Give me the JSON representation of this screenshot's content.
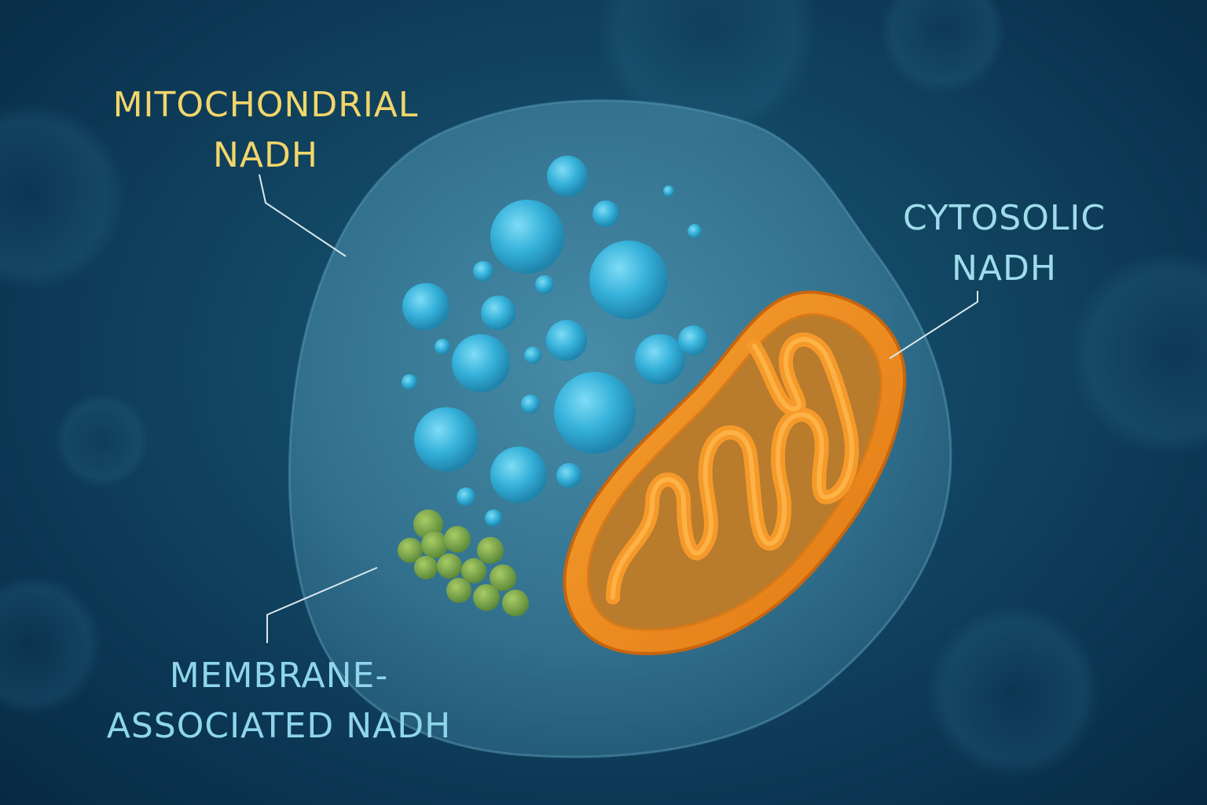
{
  "title": "",
  "labels": {
    "mitochondrial": {
      "line1": "MITOCHONDRIAL",
      "line2": "NADH"
    },
    "cytosolic": {
      "line1": "CYTOSOLIC",
      "line2": "NADH"
    },
    "membrane": {
      "line1": "MEMBRANE-",
      "line2": "ASSOCIATED NADH"
    }
  },
  "colors": {
    "background": "#0b3552",
    "cell": "#3f86a3",
    "vesicle": "#3fb4d8",
    "mitochondrion": "#f08a1c",
    "granule": "#7fa843",
    "label_yellow": "#f2d66a",
    "label_cyan": "#9fdcec"
  }
}
